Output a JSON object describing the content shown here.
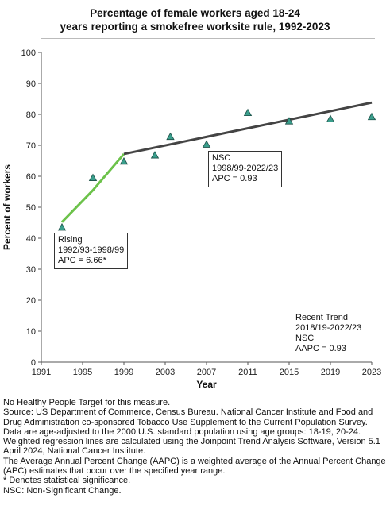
{
  "chart_data": {
    "type": "line",
    "title_lines": [
      "Percentage of female workers aged 18-24",
      "years reporting a smokefree worksite rule, 1992-2023"
    ],
    "xlabel": "Year",
    "ylabel": "Percent of workers",
    "xlim": [
      1991,
      2023
    ],
    "ylim": [
      0,
      100
    ],
    "xticks": [
      1991,
      1995,
      1999,
      2003,
      2007,
      2011,
      2015,
      2019,
      2023
    ],
    "yticks": [
      0,
      10,
      20,
      30,
      40,
      50,
      60,
      70,
      80,
      90,
      100
    ],
    "grid": false,
    "points": [
      {
        "x": 1993,
        "y": 43.5
      },
      {
        "x": 1996,
        "y": 59.5
      },
      {
        "x": 1999,
        "y": 64.8
      },
      {
        "x": 2002,
        "y": 66.8
      },
      {
        "x": 2003.5,
        "y": 72.8
      },
      {
        "x": 2007,
        "y": 70.3
      },
      {
        "x": 2011,
        "y": 80.5
      },
      {
        "x": 2015,
        "y": 77.8
      },
      {
        "x": 2019,
        "y": 78.5
      },
      {
        "x": 2023,
        "y": 79.2
      }
    ],
    "segments": [
      {
        "color": "#6cc24a",
        "x": [
          1993,
          1996,
          1999
        ],
        "y": [
          45.2,
          55.5,
          67.2
        ]
      },
      {
        "color": "#444444",
        "x": [
          1999,
          2023
        ],
        "y": [
          67.2,
          83.8
        ]
      }
    ],
    "marker_color": "#3a9e8c",
    "annotations": [
      {
        "lines": [
          "Rising",
          "1992/93-1998/99",
          "APC =  6.66*"
        ]
      },
      {
        "lines": [
          "NSC",
          "1998/99-2022/23",
          "APC =  0.93"
        ]
      },
      {
        "lines": [
          "Recent Trend",
          "2018/19-2022/23",
          "NSC",
          "AAPC =  0.93"
        ]
      }
    ]
  },
  "notes": [
    "No Healthy People Target for this measure.",
    "Source: US Department of Commerce, Census Bureau. National Cancer Institute and Food and Drug Administration co-sponsored Tobacco Use Supplement to the Current Population Survey.",
    "Data are age-adjusted to the 2000 U.S. standard population using age groups: 18-19, 20-24.",
    "Weighted regression lines are calculated using the Joinpoint Trend Analysis Software, Version 5.1 April 2024, National Cancer Institute.",
    "The Average Annual Percent Change (AAPC) is a weighted average of the Annual Percent Change (APC) estimates that occur over the specified year range.",
    "* Denotes statistical significance.",
    "NSC: Non-Significant Change."
  ]
}
